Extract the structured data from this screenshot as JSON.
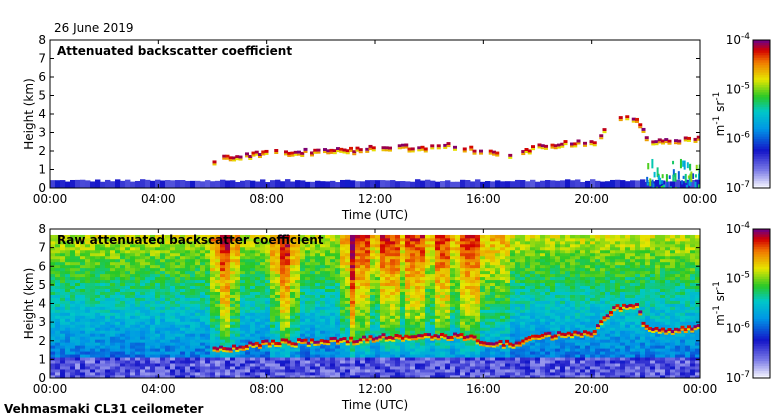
{
  "date": "26 June 2019",
  "instrument": "Vehmasmaki CL31 ceilometer",
  "chart_data": [
    {
      "type": "heatmap",
      "title": "Attenuated backscatter coefficient",
      "xlabel": "Time (UTC)",
      "ylabel": "Height (km)",
      "x_tick_labels": [
        "00:00",
        "04:00",
        "08:00",
        "12:00",
        "16:00",
        "20:00",
        "00:00"
      ],
      "xlim_hours": [
        0,
        24
      ],
      "ylim": [
        0,
        8
      ],
      "y_ticks": [
        0,
        1,
        2,
        3,
        4,
        5,
        6,
        7,
        8
      ],
      "colorbar": {
        "label_base": "m",
        "label_exp1": "-1",
        "label_mid": "sr",
        "label_exp2": "-1",
        "range_log10": [
          -7,
          -4
        ],
        "ticks": [
          {
            "base": "10",
            "exp": "-4"
          },
          {
            "base": "10",
            "exp": "-5"
          },
          {
            "base": "10",
            "exp": "-6"
          },
          {
            "base": "10",
            "exp": "-7"
          }
        ]
      },
      "cloud_layer_profile": [
        [
          6.0,
          1.5
        ],
        [
          7.0,
          1.7
        ],
        [
          8.0,
          1.9
        ],
        [
          9.0,
          1.9
        ],
        [
          10.0,
          2.0
        ],
        [
          11.0,
          2.0
        ],
        [
          12.0,
          2.2
        ],
        [
          13.0,
          2.2
        ],
        [
          14.0,
          2.2
        ],
        [
          15.0,
          2.3
        ],
        [
          16.0,
          1.9
        ],
        [
          17.0,
          1.8
        ],
        [
          18.0,
          2.2
        ],
        [
          19.0,
          2.4
        ],
        [
          20.0,
          2.4
        ],
        [
          20.8,
          3.8
        ],
        [
          21.6,
          3.8
        ],
        [
          22.0,
          2.5
        ],
        [
          23.0,
          2.6
        ],
        [
          24.0,
          2.7
        ]
      ],
      "boundary_layer_top_km": 0.4
    },
    {
      "type": "heatmap",
      "title": "Raw attenuated backscatter coefficient",
      "xlabel": "Time (UTC)",
      "ylabel": "Height (km)",
      "x_tick_labels": [
        "00:00",
        "04:00",
        "08:00",
        "12:00",
        "16:00",
        "20:00",
        "00:00"
      ],
      "xlim_hours": [
        0,
        24
      ],
      "ylim": [
        0,
        8
      ],
      "y_ticks": [
        0,
        1,
        2,
        3,
        4,
        5,
        6,
        7,
        8
      ],
      "colorbar": {
        "label_base": "m",
        "label_exp1": "-1",
        "label_mid": "sr",
        "label_exp2": "-1",
        "range_log10": [
          -7,
          -4
        ],
        "ticks": [
          {
            "base": "10",
            "exp": "-4"
          },
          {
            "base": "10",
            "exp": "-5"
          },
          {
            "base": "10",
            "exp": "-6"
          },
          {
            "base": "10",
            "exp": "-7"
          }
        ]
      },
      "cloud_layer_profile": [
        [
          6.0,
          1.5
        ],
        [
          7.0,
          1.7
        ],
        [
          8.0,
          1.9
        ],
        [
          9.0,
          1.9
        ],
        [
          10.0,
          2.0
        ],
        [
          11.0,
          2.0
        ],
        [
          12.0,
          2.2
        ],
        [
          13.0,
          2.2
        ],
        [
          14.0,
          2.2
        ],
        [
          15.0,
          2.3
        ],
        [
          16.0,
          1.9
        ],
        [
          17.0,
          1.8
        ],
        [
          18.0,
          2.2
        ],
        [
          19.0,
          2.4
        ],
        [
          20.0,
          2.4
        ],
        [
          20.8,
          3.8
        ],
        [
          21.6,
          3.8
        ],
        [
          22.0,
          2.5
        ],
        [
          23.0,
          2.6
        ],
        [
          24.0,
          2.7
        ]
      ],
      "noise_columns_hours": [
        6.3,
        6.7,
        8.5,
        8.8,
        11.0,
        11.5,
        12.5,
        13.5,
        14.5,
        15.5
      ]
    }
  ]
}
